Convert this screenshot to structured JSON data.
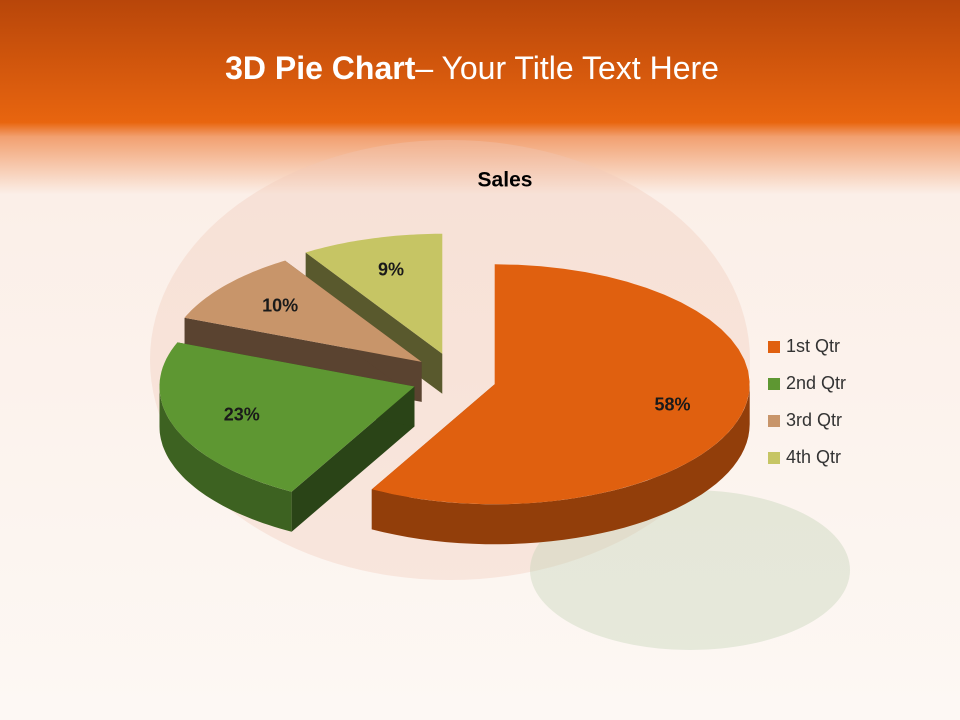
{
  "chart_data": {
    "type": "pie3d",
    "heading_bold": "3D Pie Chart",
    "heading_rest": "– Your Title Text Here",
    "title": "Sales",
    "categories": [
      "1st Qtr",
      "2nd Qtr",
      "3rd Qtr",
      "4th Qtr"
    ],
    "values": [
      58,
      23,
      10,
      9
    ],
    "value_labels": [
      "58%",
      "23%",
      "10%",
      "9%"
    ],
    "colors": [
      "#e0600f",
      "#5e9732",
      "#c8956a",
      "#c6c564"
    ],
    "legend": "right"
  }
}
